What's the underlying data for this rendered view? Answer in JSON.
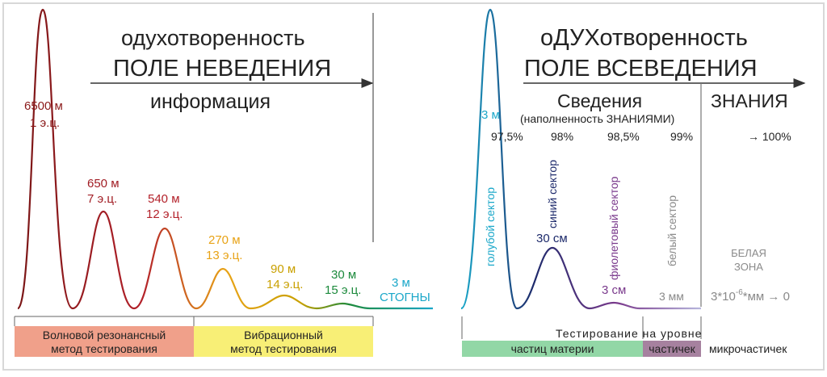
{
  "colors": {
    "border": "#d8d8d8",
    "dark_red": "#8b1a1a",
    "red": "#b3212a",
    "orange": "#e8a317",
    "gold": "#c9a000",
    "green": "#1c8a3c",
    "cyan": "#1aa7c9",
    "navy": "#1d2a6b",
    "purple": "#7a3a8c",
    "light_purple": "#b7b7dd",
    "gray": "#8a8a8a",
    "salmon": "#f0a08a",
    "yellow": "#f8ef76",
    "mint": "#92d7a6",
    "mauve": "#a6819f"
  },
  "left": {
    "title1": "одухотворенность",
    "title2": "ПОЛЕ НЕВЕДЕНИЯ",
    "subtitle": "информация",
    "peaks": [
      {
        "size": "6500 м",
        "era": "1 э.ц."
      },
      {
        "size": "650 м",
        "era": "7 э.ц."
      },
      {
        "size": "540 м",
        "era": "12 э.ц."
      },
      {
        "size": "270 м",
        "era": "13 э.ц."
      },
      {
        "size": "90 м",
        "era": "14 э.ц."
      },
      {
        "size": "30 м",
        "era": "15 э.ц."
      },
      {
        "size": "3 м",
        "era": "СТОГНЫ"
      }
    ],
    "box1_line1": "Волновой резонансный",
    "box1_line2": "метод тестирования",
    "box2_line1": "Вибрационный",
    "box2_line2": "метод тестирования"
  },
  "right": {
    "title1": "оДУХотворенность",
    "title2": "ПОЛЕ ВСЕВЕДЕНИЯ",
    "svedenia": "Сведения",
    "svedenia_sub": "(наполненность ЗНАНИЯМИ)",
    "znania": "ЗНАНИЯ",
    "pcts": [
      "97,5%",
      "98%",
      "98,5%",
      "99%",
      "→ 100%"
    ],
    "blue_size": "3 м",
    "blue_sector": "голубой сектор",
    "navy_sector": "синий сектор",
    "navy_size": "30 см",
    "violet_sector": "фиолетовый сектор",
    "violet_size": "3 см",
    "white_sector": "белый сектор",
    "white_size": "3 мм",
    "white_zone_1": "БЕЛАЯ",
    "white_zone_2": "ЗОНА",
    "formula_base": "3*10",
    "formula_exp": "-6",
    "formula_tail": "*мм → 0",
    "testing": "Тестирование на уровне",
    "box_matter": "частиц материи",
    "box_part": "частичек",
    "box_micro": "микрочастичек"
  }
}
